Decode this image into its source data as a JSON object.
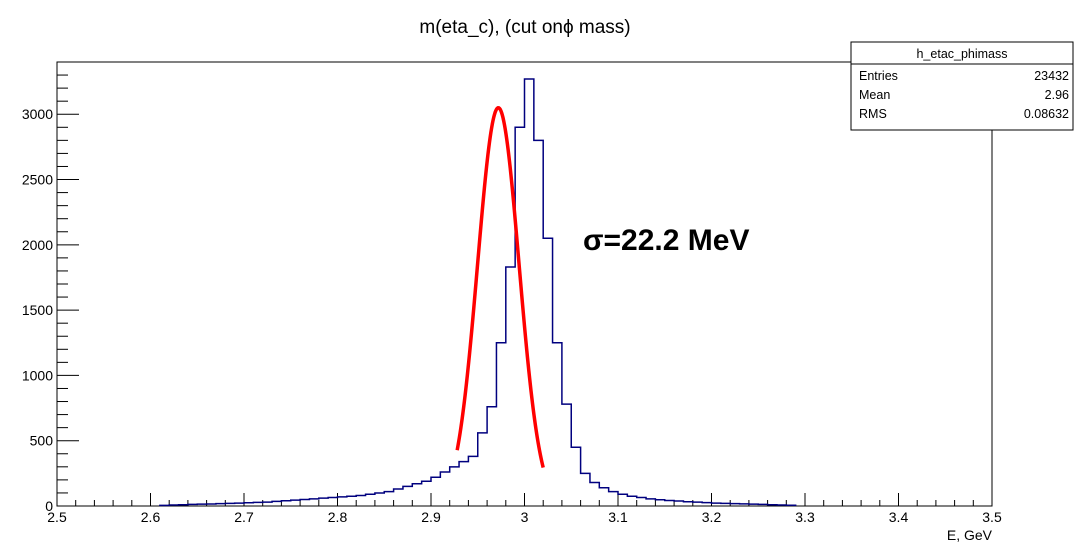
{
  "chart_data": {
    "type": "histogram",
    "title": "m(eta_c), (cut onϕ mass)",
    "xlabel": "E, GeV",
    "ylabel": "",
    "xlim": [
      2.5,
      3.5
    ],
    "ylim": [
      0,
      3400
    ],
    "grid": false,
    "x_ticks": [
      "2.5",
      "2.6",
      "2.7",
      "2.8",
      "2.9",
      "3",
      "3.1",
      "3.2",
      "3.3",
      "3.4",
      "3.5"
    ],
    "y_ticks": [
      "0",
      "500",
      "1000",
      "1500",
      "2000",
      "2500",
      "3000"
    ],
    "bin_width": 0.01,
    "bins_start": 2.61,
    "counts": [
      5,
      8,
      10,
      12,
      14,
      15,
      18,
      20,
      22,
      25,
      28,
      30,
      35,
      40,
      45,
      50,
      55,
      60,
      65,
      70,
      75,
      80,
      90,
      100,
      110,
      130,
      150,
      170,
      190,
      220,
      260,
      300,
      340,
      380,
      560,
      760,
      1250,
      1830,
      2900,
      3270,
      2800,
      2050,
      1250,
      780,
      450,
      250,
      180,
      140,
      110,
      90,
      75,
      65,
      55,
      48,
      42,
      38,
      33,
      30,
      26,
      22,
      20,
      18,
      16,
      14,
      12,
      10,
      8,
      6
    ],
    "series": [
      {
        "name": "h_etac_phimass",
        "kind": "histogram",
        "color": "#00007f"
      },
      {
        "name": "",
        "kind": "gaussian-fit",
        "color": "#ff0000",
        "mean": 2.972,
        "sigma": 0.0222,
        "amplitude": 3050,
        "range": [
          2.928,
          3.02
        ]
      }
    ],
    "annotations": [
      "σ=22.2 MeV"
    ]
  },
  "stats_box": {
    "title": "h_etac_phimass",
    "rows": [
      {
        "label": "Entries",
        "value": "23432"
      },
      {
        "label": "Mean",
        "value": "2.96"
      },
      {
        "label": "RMS",
        "value": "0.08632"
      }
    ]
  },
  "colors": {
    "histogram": "#00007f",
    "fit": "#ff0000",
    "axis": "#000000"
  }
}
